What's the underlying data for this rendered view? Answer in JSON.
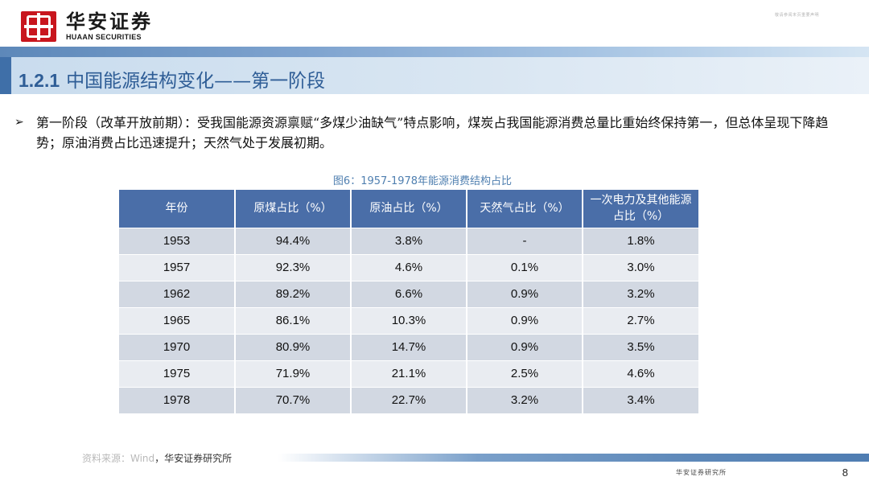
{
  "header": {
    "logo_cn": "华安证券",
    "logo_en": "HUAAN SECURITIES",
    "top_right_tag": "敬请参阅末页重要声明"
  },
  "section": {
    "number": "1.2.1",
    "title": "中国能源结构变化——第一阶段"
  },
  "bullet": {
    "text": "第一阶段（改革开放前期）：受我国能源资源禀赋“多煤少油缺气”特点影响，煤炭占我国能源消费总量比重始终保持第一，但总体呈现下降趋势；原油消费占比迅速提升；天然气处于发展初期。"
  },
  "figure": {
    "caption": "图6：1957-1978年能源消费结构占比"
  },
  "table": {
    "headers": [
      "年份",
      "原煤占比（%）",
      "原油占比（%）",
      "天然气占比（%）",
      "一次电力及其他能源占比（%）"
    ],
    "rows": [
      [
        "1953",
        "94.4%",
        "3.8%",
        "-",
        "1.8%"
      ],
      [
        "1957",
        "92.3%",
        "4.6%",
        "0.1%",
        "3.0%"
      ],
      [
        "1962",
        "89.2%",
        "6.6%",
        "0.9%",
        "3.2%"
      ],
      [
        "1965",
        "86.1%",
        "10.3%",
        "0.9%",
        "2.7%"
      ],
      [
        "1970",
        "80.9%",
        "14.7%",
        "0.9%",
        "3.5%"
      ],
      [
        "1975",
        "71.9%",
        "21.1%",
        "2.5%",
        "4.6%"
      ],
      [
        "1978",
        "70.7%",
        "22.7%",
        "3.2%",
        "3.4%"
      ]
    ]
  },
  "footer": {
    "source_faded": "资料来源：Wind",
    "source_text": "，华安证券研究所",
    "org": "华安证券研究所",
    "page_number": "8"
  }
}
